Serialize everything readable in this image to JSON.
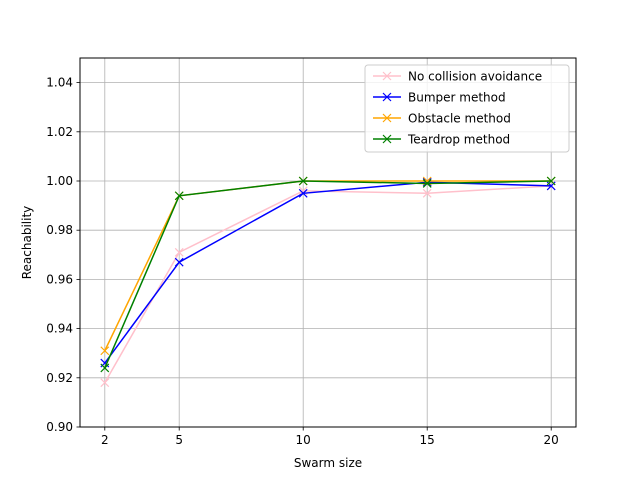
{
  "chart_data": {
    "type": "line",
    "title": "",
    "xlabel": "Swarm size",
    "ylabel": "Reachability",
    "x": [
      2,
      5,
      10,
      15,
      20
    ],
    "xticks": [
      2,
      5,
      10,
      15,
      20
    ],
    "xlim": [
      1,
      21
    ],
    "yticks": [
      0.9,
      0.92,
      0.94,
      0.96,
      0.98,
      1.0,
      1.02,
      1.04
    ],
    "ylim": [
      0.9,
      1.05
    ],
    "grid": true,
    "legend_position": "top-right",
    "series": [
      {
        "name": "No collision avoidance",
        "color": "#ffc0cb",
        "marker": "x",
        "values": [
          0.918,
          0.971,
          0.996,
          0.995,
          0.998
        ]
      },
      {
        "name": "Bumper method",
        "color": "#0000ff",
        "marker": "x",
        "values": [
          0.926,
          0.967,
          0.995,
          0.9995,
          0.998
        ]
      },
      {
        "name": "Obstacle method",
        "color": "#ffa500",
        "marker": "x",
        "values": [
          0.931,
          0.994,
          1.0,
          1.0,
          1.0
        ]
      },
      {
        "name": "Teardrop method",
        "color": "#008000",
        "marker": "x",
        "values": [
          0.924,
          0.994,
          1.0,
          0.999,
          1.0
        ]
      }
    ]
  }
}
